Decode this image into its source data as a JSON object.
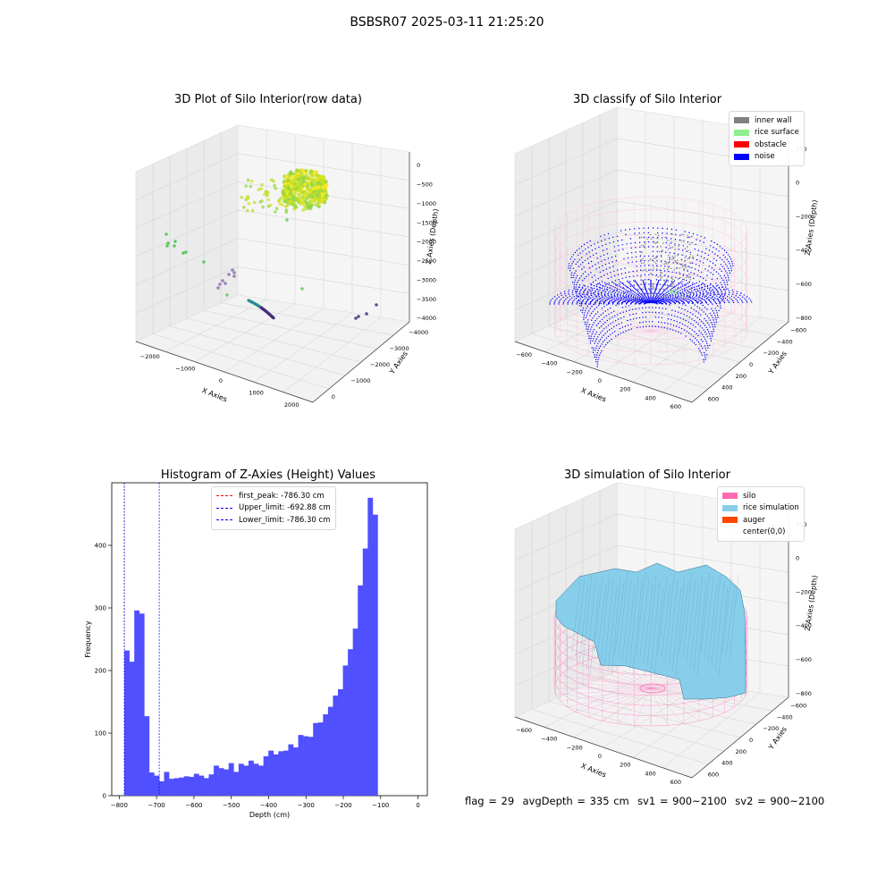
{
  "figure": {
    "suptitle": "BSBSR07 2025-03-11 21:25:20",
    "footer": {
      "flag": "flag = 29",
      "avg_depth": "avgDepth = 335 cm",
      "sv1": "sv1 = 900~2100",
      "sv2": "sv2 = 900~2100"
    }
  },
  "chart_data": [
    {
      "type": "scatter",
      "title": "3D Plot of Silo Interior(row data)",
      "xlabel": "X Axies",
      "ylabel": "Y Axies",
      "zlabel": "Z Axies (Depth)",
      "x_ticks": [
        "−2000",
        "−1000",
        "0",
        "1000",
        "2000"
      ],
      "y_ticks": [
        "0",
        "−1000",
        "−2000",
        "−3000",
        "−4000"
      ],
      "z_ticks": [
        "0",
        "−500",
        "−1000",
        "−1500",
        "−2000",
        "−2500",
        "−3000",
        "−3500",
        "−4000"
      ],
      "colormap": "viridis",
      "clusters": [
        {
          "x": 300,
          "y": -500,
          "z": -300,
          "color": "#e6e22a"
        },
        {
          "x": -600,
          "y": -200,
          "z": -600,
          "color": "#bcdc2e"
        },
        {
          "x": -2100,
          "y": 0,
          "z": -2000,
          "color": "#5ec962"
        },
        {
          "x": -800,
          "y": -300,
          "z": -3100,
          "color": "#8e6bb0"
        },
        {
          "x": 0,
          "y": -2500,
          "z": -4000,
          "color": "#3b528b"
        },
        {
          "x": 2000,
          "y": -4000,
          "z": -3800,
          "color": "#5b4a8f"
        }
      ]
    },
    {
      "type": "scatter",
      "title": "3D classify of Silo Interior",
      "xlabel": "X Axies",
      "ylabel": "Y Axies",
      "zlabel": "Z Axies (Depth)",
      "x_ticks": [
        "−600",
        "−400",
        "−200",
        "0",
        "200",
        "400",
        "600"
      ],
      "y_ticks": [
        "600",
        "400",
        "200",
        "0",
        "−200",
        "−400",
        "−600"
      ],
      "z_ticks": [
        "200",
        "0",
        "−200",
        "−400",
        "−600",
        "−800"
      ],
      "legend": [
        {
          "label": "inner wall",
          "color": "#808080"
        },
        {
          "label": "rice surface",
          "color": "#90ee90"
        },
        {
          "label": "obstacle",
          "color": "#ff0000"
        },
        {
          "label": "noise",
          "color": "#0000ff"
        }
      ],
      "silo_color": "#ff69b4"
    },
    {
      "type": "bar",
      "title": "Histogram of Z-Axies (Height) Values",
      "xlabel": "Depth (cm)",
      "ylabel": "Frequency",
      "xlim": [
        -820,
        25
      ],
      "ylim": [
        0,
        500
      ],
      "x_ticks": [
        -800,
        -700,
        -600,
        -500,
        -400,
        -300,
        -200,
        -100,
        0
      ],
      "y_ticks": [
        0,
        100,
        200,
        300,
        400
      ],
      "bar_color": "#5050ff",
      "bin_start": -786.3,
      "bin_width": 13.3,
      "values": [
        232,
        214,
        296,
        291,
        127,
        37,
        32,
        23,
        38,
        27,
        28,
        29,
        31,
        30,
        35,
        32,
        28,
        34,
        48,
        44,
        42,
        52,
        38,
        51,
        48,
        56,
        51,
        48,
        63,
        72,
        66,
        71,
        72,
        82,
        77,
        97,
        95,
        94,
        116,
        117,
        130,
        142,
        160,
        170,
        208,
        234,
        267,
        336,
        395,
        476,
        449
      ],
      "legend": [
        {
          "label": "first_peak: -786.30 cm",
          "color": "#ff0000",
          "value": -786.3
        },
        {
          "label": "Upper_limit: -692.88 cm",
          "color": "#0000ff",
          "value": -692.88
        },
        {
          "label": "Lower_limit: -786.30 cm",
          "color": "#0000ff",
          "value": -786.3
        }
      ]
    },
    {
      "type": "area",
      "title": "3D simulation of Silo Interior",
      "xlabel": "X Axies",
      "ylabel": "Y Axies",
      "zlabel": "Z Axies (Depth)",
      "x_ticks": [
        "−600",
        "−400",
        "−200",
        "0",
        "200",
        "400",
        "600"
      ],
      "y_ticks": [
        "600",
        "400",
        "200",
        "0",
        "−200",
        "−400",
        "−600"
      ],
      "z_ticks": [
        "200",
        "0",
        "−200",
        "−400",
        "−600",
        "−800"
      ],
      "legend": [
        {
          "label": "silo",
          "color": "#ff69b4"
        },
        {
          "label": "rice simulation",
          "color": "#87ceeb"
        },
        {
          "label": "auger",
          "color": "#ff4500"
        },
        {
          "label": "center(0,0)",
          "color": ""
        }
      ]
    }
  ]
}
